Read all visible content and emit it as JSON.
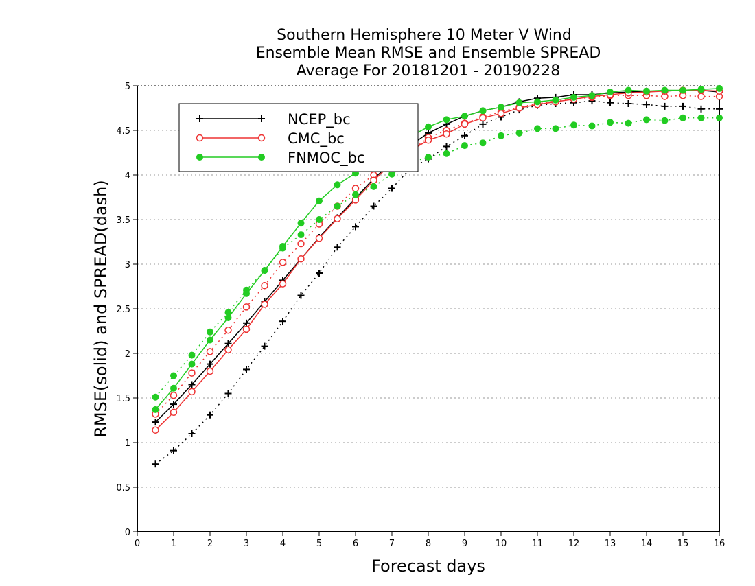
{
  "chart_data": {
    "type": "line",
    "title_lines": [
      "Southern Hemisphere 10 Meter V Wind",
      "Ensemble Mean RMSE and Ensemble SPREAD",
      "Average For 20181201 - 20190228"
    ],
    "xlabel": "Forecast days",
    "ylabel": "RMSE(solid) and SPREAD(dash)",
    "xlim": [
      0,
      16
    ],
    "ylim": [
      0,
      5
    ],
    "x_ticks": [
      "0",
      "1",
      "2",
      "3",
      "4",
      "5",
      "6",
      "7",
      "8",
      "9",
      "10",
      "11",
      "12",
      "13",
      "14",
      "15",
      "16"
    ],
    "y_ticks": [
      "0",
      "0.5",
      "1",
      "1.5",
      "2",
      "2.5",
      "3",
      "3.5",
      "4",
      "4.5",
      "5"
    ],
    "y_tick_values": [
      0,
      0.5,
      1,
      1.5,
      2,
      2.5,
      3,
      3.5,
      4,
      4.5,
      5
    ],
    "grid": "horizontal dotted",
    "legend_position": "top-left",
    "x": [
      0.5,
      1,
      1.5,
      2,
      2.5,
      3,
      3.5,
      4,
      4.5,
      5,
      5.5,
      6,
      6.5,
      7,
      7.5,
      8,
      8.5,
      9,
      9.5,
      10,
      10.5,
      11,
      11.5,
      12,
      12.5,
      13,
      13.5,
      14,
      14.5,
      15,
      15.5,
      16
    ],
    "series": [
      {
        "name": "NCEP_bc",
        "color": "#000000",
        "marker": "plus",
        "rmse": [
          1.23,
          1.43,
          1.65,
          1.88,
          2.11,
          2.34,
          2.58,
          2.82,
          3.06,
          3.3,
          3.52,
          3.74,
          3.96,
          4.14,
          4.33,
          4.47,
          4.57,
          4.66,
          4.72,
          4.76,
          4.82,
          4.86,
          4.87,
          4.9,
          4.9,
          4.92,
          4.93,
          4.94,
          4.94,
          4.95,
          4.95,
          4.93
        ],
        "spread": [
          0.76,
          0.91,
          1.1,
          1.31,
          1.55,
          1.82,
          2.08,
          2.36,
          2.65,
          2.9,
          3.19,
          3.42,
          3.65,
          3.85,
          4.07,
          4.18,
          4.32,
          4.44,
          4.57,
          4.65,
          4.73,
          4.78,
          4.8,
          4.81,
          4.83,
          4.81,
          4.8,
          4.79,
          4.77,
          4.77,
          4.74,
          4.74
        ]
      },
      {
        "name": "CMC_bc",
        "color": "#ee3333",
        "marker": "open-circle",
        "rmse": [
          1.14,
          1.34,
          1.57,
          1.8,
          2.04,
          2.27,
          2.55,
          2.78,
          3.06,
          3.29,
          3.51,
          3.72,
          3.94,
          4.13,
          4.27,
          4.39,
          4.46,
          4.57,
          4.64,
          4.69,
          4.75,
          4.79,
          4.82,
          4.85,
          4.88,
          4.9,
          4.92,
          4.93,
          4.94,
          4.95,
          4.95,
          4.94
        ],
        "spread": [
          1.32,
          1.53,
          1.78,
          2.02,
          2.26,
          2.52,
          2.76,
          3.02,
          3.23,
          3.45,
          3.65,
          3.85,
          4.0,
          4.15,
          4.26,
          4.42,
          4.5,
          4.58,
          4.65,
          4.71,
          4.76,
          4.8,
          4.83,
          4.85,
          4.87,
          4.89,
          4.89,
          4.89,
          4.88,
          4.89,
          4.88,
          4.88
        ]
      },
      {
        "name": "FNMOC_bc",
        "color": "#22cc22",
        "marker": "filled-circle",
        "rmse": [
          1.37,
          1.61,
          1.88,
          2.15,
          2.4,
          2.67,
          2.93,
          3.2,
          3.46,
          3.71,
          3.89,
          4.02,
          4.16,
          4.3,
          4.43,
          4.54,
          4.62,
          4.66,
          4.72,
          4.76,
          4.81,
          4.82,
          4.84,
          4.87,
          4.89,
          4.93,
          4.95,
          4.94,
          4.95,
          4.95,
          4.96,
          4.97
        ],
        "spread": [
          1.51,
          1.75,
          1.98,
          2.24,
          2.46,
          2.71,
          2.93,
          3.18,
          3.33,
          3.5,
          3.65,
          3.78,
          3.87,
          4.01,
          4.14,
          4.2,
          4.24,
          4.33,
          4.36,
          4.44,
          4.47,
          4.52,
          4.52,
          4.56,
          4.55,
          4.59,
          4.58,
          4.62,
          4.61,
          4.64,
          4.64,
          4.64
        ]
      }
    ]
  }
}
